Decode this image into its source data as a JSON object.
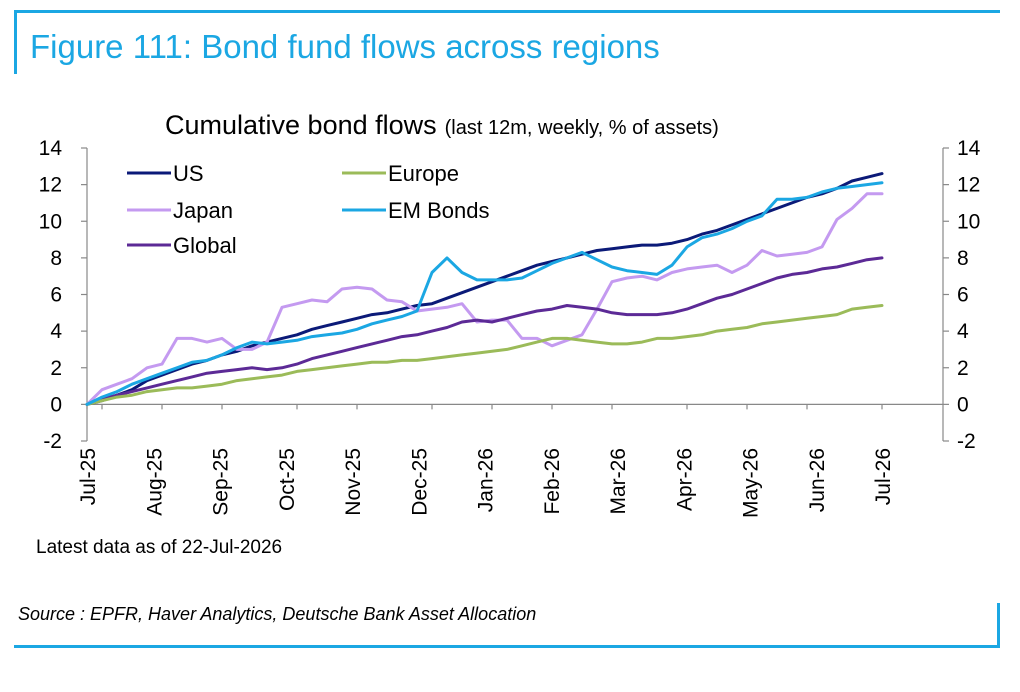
{
  "figure_title": "Figure 111: Bond fund flows across regions",
  "note": "Latest data as of 22-Jul-2026",
  "source": "Source : EPFR, Haver Analytics, Deutsche Bank Asset Allocation",
  "colors": {
    "frame": "#1ba7e3",
    "title": "#1ba7e3"
  },
  "chart_data": {
    "type": "line",
    "title": "Cumulative bond flows",
    "subtitle": "(last 12m, weekly, % of assets)",
    "xlabel": "",
    "ylabel": "",
    "ylim": [
      -2,
      14
    ],
    "yticks": [
      -2,
      0,
      2,
      4,
      6,
      8,
      10,
      12,
      14
    ],
    "secondary_yaxis": true,
    "grid": false,
    "legend_position": "top-left",
    "x_tick_labels": [
      "Jul-25",
      "Aug-25",
      "Sep-25",
      "Oct-25",
      "Nov-25",
      "Dec-25",
      "Jan-26",
      "Feb-26",
      "Mar-26",
      "Apr-26",
      "May-26",
      "Jun-26",
      "Jul-26"
    ],
    "x_start": "2025-07-23",
    "x_frequency": "weekly",
    "series": [
      {
        "name": "US",
        "color": "#0b1a78",
        "values": [
          0,
          0.2,
          0.5,
          0.8,
          1.3,
          1.6,
          1.9,
          2.2,
          2.4,
          2.7,
          2.9,
          3.2,
          3.4,
          3.6,
          3.8,
          4.1,
          4.3,
          4.5,
          4.7,
          4.9,
          5.0,
          5.2,
          5.4,
          5.5,
          5.8,
          6.1,
          6.4,
          6.7,
          7.0,
          7.3,
          7.6,
          7.8,
          8.0,
          8.2,
          8.4,
          8.5,
          8.6,
          8.7,
          8.7,
          8.8,
          9.0,
          9.3,
          9.5,
          9.8,
          10.1,
          10.4,
          10.7,
          11.0,
          11.3,
          11.5,
          11.8,
          12.2,
          12.4,
          12.6
        ]
      },
      {
        "name": "Japan",
        "color": "#c49af0",
        "values": [
          0,
          0.8,
          1.1,
          1.4,
          2.0,
          2.2,
          3.6,
          3.6,
          3.4,
          3.6,
          3.0,
          3.0,
          3.4,
          5.3,
          5.5,
          5.7,
          5.6,
          6.3,
          6.4,
          6.3,
          5.7,
          5.6,
          5.1,
          5.2,
          5.3,
          5.5,
          4.5,
          4.6,
          4.6,
          3.6,
          3.6,
          3.2,
          3.5,
          3.8,
          5.2,
          6.7,
          6.9,
          7.0,
          6.8,
          7.2,
          7.4,
          7.5,
          7.6,
          7.2,
          7.6,
          8.4,
          8.1,
          8.2,
          8.3,
          8.6,
          10.1,
          10.7,
          11.5,
          11.5
        ]
      },
      {
        "name": "Global",
        "color": "#5c2a96",
        "values": [
          0,
          0.3,
          0.5,
          0.7,
          0.9,
          1.1,
          1.3,
          1.5,
          1.7,
          1.8,
          1.9,
          2.0,
          1.9,
          2.0,
          2.2,
          2.5,
          2.7,
          2.9,
          3.1,
          3.3,
          3.5,
          3.7,
          3.8,
          4.0,
          4.2,
          4.5,
          4.6,
          4.5,
          4.7,
          4.9,
          5.1,
          5.2,
          5.4,
          5.3,
          5.2,
          5.0,
          4.9,
          4.9,
          4.9,
          5.0,
          5.2,
          5.5,
          5.8,
          6.0,
          6.3,
          6.6,
          6.9,
          7.1,
          7.2,
          7.4,
          7.5,
          7.7,
          7.9,
          8.0
        ]
      },
      {
        "name": "Europe",
        "color": "#9bbb59",
        "values": [
          0,
          0.2,
          0.4,
          0.5,
          0.7,
          0.8,
          0.9,
          0.9,
          1.0,
          1.1,
          1.3,
          1.4,
          1.5,
          1.6,
          1.8,
          1.9,
          2.0,
          2.1,
          2.2,
          2.3,
          2.3,
          2.4,
          2.4,
          2.5,
          2.6,
          2.7,
          2.8,
          2.9,
          3.0,
          3.2,
          3.4,
          3.6,
          3.6,
          3.5,
          3.4,
          3.3,
          3.3,
          3.4,
          3.6,
          3.6,
          3.7,
          3.8,
          4.0,
          4.1,
          4.2,
          4.4,
          4.5,
          4.6,
          4.7,
          4.8,
          4.9,
          5.2,
          5.3,
          5.4
        ]
      },
      {
        "name": "EM Bonds",
        "color": "#1ba7e3",
        "values": [
          0,
          0.4,
          0.7,
          1.1,
          1.4,
          1.7,
          2.0,
          2.3,
          2.4,
          2.7,
          3.1,
          3.4,
          3.3,
          3.4,
          3.5,
          3.7,
          3.8,
          3.9,
          4.1,
          4.4,
          4.6,
          4.8,
          5.1,
          7.2,
          8.0,
          7.2,
          6.8,
          6.8,
          6.8,
          6.9,
          7.3,
          7.7,
          8.0,
          8.3,
          7.9,
          7.5,
          7.3,
          7.2,
          7.1,
          7.6,
          8.6,
          9.1,
          9.3,
          9.6,
          10.0,
          10.3,
          11.2,
          11.2,
          11.3,
          11.6,
          11.8,
          11.9,
          12.0,
          12.1
        ]
      }
    ]
  }
}
